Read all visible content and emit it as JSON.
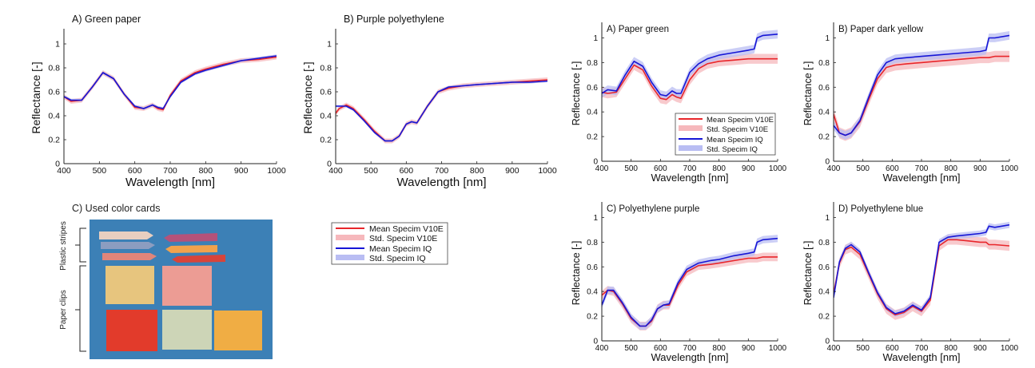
{
  "colors": {
    "mean_v10e": "#e8262b",
    "std_v10e": "#f6b8bc",
    "mean_iq": "#1616d6",
    "std_iq": "#b9bdf3",
    "background": "#ffffff",
    "photo_background": "#3c80b6"
  },
  "legend": {
    "mean_v10e": "Mean Specim V10E",
    "std_v10e": "Std. Specim V10E",
    "mean_iq": "Mean Specim IQ",
    "std_iq": "Std. Specim IQ"
  },
  "photo": {
    "title": "C) Used color cards",
    "label_stripes": "Plastic stripes",
    "label_clips": "Paper clips",
    "stripe_colors": [
      "#e8cfc0",
      "#8c9dc0",
      "#e0857a",
      "#b4527a",
      "#f1a24c",
      "#d8443a"
    ],
    "clip_colors": [
      "#e7c57e",
      "#ec9c94",
      "#e23b2b",
      "#cdd5b7",
      "#f0ad44"
    ]
  },
  "chart_data": [
    {
      "id": "green_paper",
      "type": "line",
      "title": "A) Green paper",
      "xlabel": "Wavelength [nm]",
      "ylabel": "Reflectance [-]",
      "xlim": [
        400,
        1000
      ],
      "ylim": [
        0,
        1.1
      ],
      "xticks": [
        "400",
        "500",
        "600",
        "700",
        "800",
        "900",
        "1000"
      ],
      "yticks": [
        "0",
        "0.2",
        "0.4",
        "0.6",
        "0.8",
        "1"
      ],
      "x": [
        400,
        420,
        450,
        480,
        510,
        540,
        570,
        600,
        625,
        650,
        665,
        680,
        700,
        730,
        770,
        800,
        850,
        900,
        950,
        1000
      ],
      "series": [
        {
          "key": "iq",
          "values": [
            0.56,
            0.53,
            0.53,
            0.64,
            0.76,
            0.71,
            0.58,
            0.48,
            0.46,
            0.49,
            0.47,
            0.46,
            0.56,
            0.68,
            0.75,
            0.78,
            0.82,
            0.86,
            0.88,
            0.9
          ],
          "std": 0.012
        },
        {
          "key": "v10e",
          "values": [
            0.56,
            0.52,
            0.53,
            0.64,
            0.76,
            0.71,
            0.58,
            0.47,
            0.46,
            0.49,
            0.46,
            0.45,
            0.57,
            0.69,
            0.76,
            0.79,
            0.83,
            0.86,
            0.87,
            0.89
          ],
          "std": 0.02
        }
      ]
    },
    {
      "id": "purple_pe",
      "type": "line",
      "title": "B) Purple polyethylene",
      "xlabel": "Wavelength [nm]",
      "ylabel": "Reflectance [-]",
      "xlim": [
        400,
        1000
      ],
      "ylim": [
        0,
        1.1
      ],
      "xticks": [
        "400",
        "500",
        "600",
        "700",
        "800",
        "900",
        "1000"
      ],
      "yticks": [
        "0",
        "0.2",
        "0.4",
        "0.6",
        "0.8",
        "1"
      ],
      "x": [
        400,
        410,
        430,
        450,
        480,
        510,
        540,
        560,
        580,
        600,
        615,
        630,
        660,
        690,
        720,
        760,
        800,
        850,
        900,
        950,
        1000
      ],
      "series": [
        {
          "key": "iq",
          "values": [
            0.48,
            0.48,
            0.48,
            0.45,
            0.36,
            0.26,
            0.19,
            0.19,
            0.23,
            0.33,
            0.35,
            0.34,
            0.48,
            0.6,
            0.64,
            0.65,
            0.66,
            0.67,
            0.68,
            0.68,
            0.69
          ],
          "std": 0.01
        },
        {
          "key": "v10e",
          "values": [
            0.42,
            0.46,
            0.49,
            0.46,
            0.37,
            0.27,
            0.19,
            0.19,
            0.23,
            0.33,
            0.35,
            0.34,
            0.48,
            0.6,
            0.63,
            0.65,
            0.66,
            0.67,
            0.68,
            0.69,
            0.7
          ],
          "std": 0.02
        }
      ]
    },
    {
      "id": "paper_green",
      "type": "line",
      "title": "A) Paper green",
      "xlabel": "Wavelength [nm]",
      "ylabel": "Reflectance [-]",
      "xlim": [
        400,
        1000
      ],
      "ylim": [
        0,
        1.1
      ],
      "xticks": [
        "400",
        "500",
        "600",
        "700",
        "800",
        "900",
        "1000"
      ],
      "yticks": [
        "0",
        "0.2",
        "0.4",
        "0.6",
        "0.8",
        "1"
      ],
      "x": [
        400,
        420,
        450,
        480,
        510,
        540,
        570,
        600,
        620,
        640,
        655,
        670,
        700,
        730,
        760,
        800,
        850,
        900,
        920,
        930,
        950,
        1000
      ],
      "series": [
        {
          "key": "iq",
          "values": [
            0.55,
            0.58,
            0.57,
            0.7,
            0.81,
            0.77,
            0.64,
            0.54,
            0.53,
            0.57,
            0.55,
            0.55,
            0.72,
            0.79,
            0.83,
            0.86,
            0.88,
            0.9,
            0.91,
            1.0,
            1.02,
            1.03
          ],
          "std": 0.035
        },
        {
          "key": "v10e",
          "values": [
            0.56,
            0.55,
            0.56,
            0.67,
            0.78,
            0.74,
            0.61,
            0.51,
            0.5,
            0.54,
            0.52,
            0.51,
            0.66,
            0.75,
            0.79,
            0.81,
            0.82,
            0.83,
            0.83,
            0.83,
            0.83,
            0.83
          ],
          "std": 0.04
        }
      ]
    },
    {
      "id": "paper_dark_yellow",
      "type": "line",
      "title": "B) Paper dark yellow",
      "xlabel": "Wavelength [nm]",
      "ylabel": "Reflectance [-]",
      "xlim": [
        400,
        1000
      ],
      "ylim": [
        0,
        1.1
      ],
      "xticks": [
        "400",
        "500",
        "600",
        "700",
        "800",
        "900",
        "1000"
      ],
      "yticks": [
        "0",
        "0.2",
        "0.4",
        "0.6",
        "0.8",
        "1"
      ],
      "x": [
        400,
        420,
        440,
        460,
        490,
        520,
        550,
        580,
        610,
        650,
        700,
        750,
        800,
        850,
        900,
        920,
        930,
        950,
        1000
      ],
      "series": [
        {
          "key": "iq",
          "values": [
            0.29,
            0.23,
            0.21,
            0.23,
            0.33,
            0.52,
            0.7,
            0.8,
            0.83,
            0.84,
            0.85,
            0.86,
            0.87,
            0.88,
            0.89,
            0.9,
            1.0,
            1.0,
            1.02
          ],
          "std": 0.035
        },
        {
          "key": "v10e",
          "values": [
            0.38,
            0.23,
            0.21,
            0.23,
            0.32,
            0.5,
            0.67,
            0.76,
            0.78,
            0.79,
            0.8,
            0.81,
            0.82,
            0.83,
            0.84,
            0.84,
            0.84,
            0.85,
            0.85
          ],
          "std": 0.045
        }
      ]
    },
    {
      "id": "polyethylene_purple",
      "type": "line",
      "title": "C) Polyethylene purple",
      "xlabel": "Wavelength [nm]",
      "ylabel": "Reflectance [-]",
      "xlim": [
        400,
        1000
      ],
      "ylim": [
        0,
        1.1
      ],
      "xticks": [
        "400",
        "500",
        "600",
        "700",
        "800",
        "900",
        "1000"
      ],
      "yticks": [
        "0",
        "0.2",
        "0.4",
        "0.6",
        "0.8",
        "1"
      ],
      "x": [
        400,
        420,
        440,
        470,
        500,
        530,
        550,
        570,
        590,
        610,
        630,
        660,
        690,
        730,
        770,
        800,
        850,
        900,
        920,
        930,
        950,
        1000
      ],
      "series": [
        {
          "key": "iq",
          "values": [
            0.29,
            0.41,
            0.41,
            0.31,
            0.19,
            0.12,
            0.12,
            0.17,
            0.26,
            0.29,
            0.3,
            0.47,
            0.58,
            0.63,
            0.65,
            0.66,
            0.69,
            0.71,
            0.72,
            0.8,
            0.82,
            0.83
          ],
          "std": 0.03
        },
        {
          "key": "v10e",
          "values": [
            0.37,
            0.41,
            0.4,
            0.3,
            0.18,
            0.12,
            0.12,
            0.16,
            0.26,
            0.29,
            0.29,
            0.45,
            0.56,
            0.61,
            0.62,
            0.63,
            0.65,
            0.67,
            0.67,
            0.67,
            0.68,
            0.68
          ],
          "std": 0.035
        }
      ]
    },
    {
      "id": "polyethylene_blue",
      "type": "line",
      "title": "D) Polyethylene blue",
      "xlabel": "Wavelength [nm]",
      "ylabel": "Reflectance [-]",
      "xlim": [
        400,
        1000
      ],
      "ylim": [
        0,
        1.1
      ],
      "xticks": [
        "400",
        "500",
        "600",
        "700",
        "800",
        "900",
        "1000"
      ],
      "yticks": [
        "0",
        "0.2",
        "0.4",
        "0.6",
        "0.8",
        "1"
      ],
      "x": [
        400,
        420,
        440,
        460,
        490,
        520,
        550,
        580,
        610,
        640,
        670,
        700,
        730,
        760,
        790,
        820,
        860,
        900,
        920,
        930,
        950,
        1000
      ],
      "series": [
        {
          "key": "iq",
          "values": [
            0.35,
            0.64,
            0.75,
            0.78,
            0.72,
            0.55,
            0.39,
            0.27,
            0.22,
            0.24,
            0.29,
            0.25,
            0.35,
            0.8,
            0.84,
            0.85,
            0.86,
            0.87,
            0.88,
            0.93,
            0.92,
            0.94
          ],
          "std": 0.025
        },
        {
          "key": "v10e",
          "values": [
            0.38,
            0.63,
            0.74,
            0.76,
            0.7,
            0.54,
            0.38,
            0.26,
            0.21,
            0.23,
            0.28,
            0.24,
            0.33,
            0.77,
            0.82,
            0.82,
            0.81,
            0.8,
            0.8,
            0.78,
            0.78,
            0.77
          ],
          "std": 0.04
        }
      ]
    }
  ]
}
